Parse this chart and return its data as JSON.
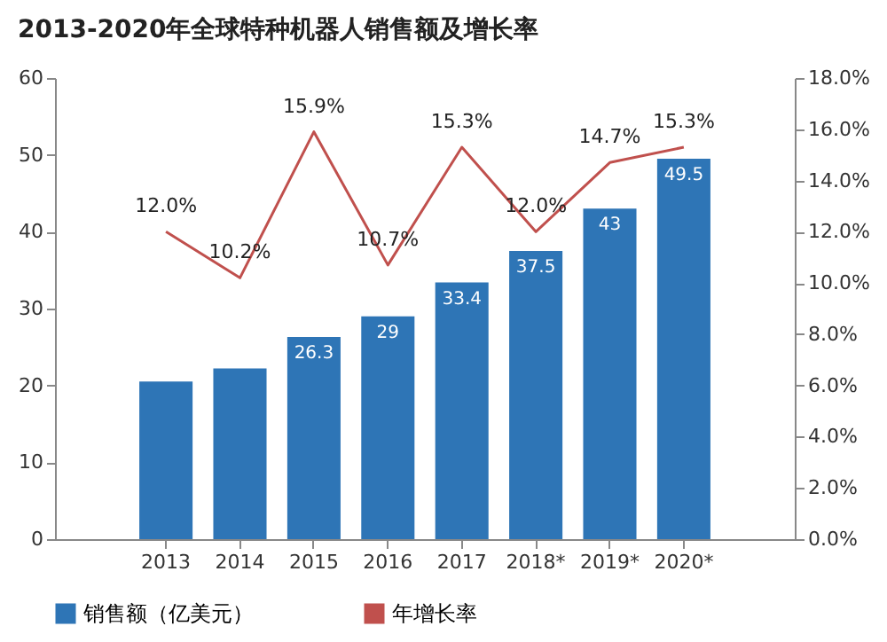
{
  "chart_data": {
    "type": "bar",
    "title": "2013-2020年全球特种机器人销售额及增长率",
    "categories": [
      "2013",
      "2014",
      "2015",
      "2016",
      "2017",
      "2018*",
      "2019*",
      "2020*"
    ],
    "series": [
      {
        "name": "销售额（亿美元）",
        "type": "bar",
        "color": "#2e75b6",
        "values": [
          20.5,
          22.2,
          26.3,
          29,
          33.4,
          37.5,
          43,
          49.5
        ],
        "value_labels": [
          null,
          null,
          "26.3",
          "29",
          "33.4",
          "37.5",
          "43",
          "49.5"
        ]
      },
      {
        "name": "年增长率",
        "type": "line",
        "axis": "y2",
        "color": "#c0504d",
        "values": [
          12.0,
          10.2,
          15.9,
          10.7,
          15.3,
          12.0,
          14.7,
          15.3
        ],
        "value_labels": [
          "12.0%",
          "10.2%",
          "15.9%",
          "10.7%",
          "15.3%",
          "12.0%",
          "14.7%",
          "15.3%"
        ]
      }
    ],
    "ylim": [
      0,
      60
    ],
    "yticks": [
      0,
      10,
      20,
      30,
      40,
      50,
      60
    ],
    "y2lim": [
      0,
      18
    ],
    "y2ticks": [
      {
        "value": 0,
        "label": "0.0%"
      },
      {
        "value": 2,
        "label": "2.0%"
      },
      {
        "value": 4,
        "label": "4.0%"
      },
      {
        "value": 6,
        "label": "6.0%"
      },
      {
        "value": 8,
        "label": "8.0%"
      },
      {
        "value": 10,
        "label": "10.0%"
      },
      {
        "value": 12,
        "label": "12.0%"
      },
      {
        "value": 14,
        "label": "14.0%"
      },
      {
        "value": 16,
        "label": "16.0%"
      },
      {
        "value": 18,
        "label": "18.0%"
      }
    ],
    "legend": "bottom",
    "grid": false,
    "marker": "none"
  }
}
